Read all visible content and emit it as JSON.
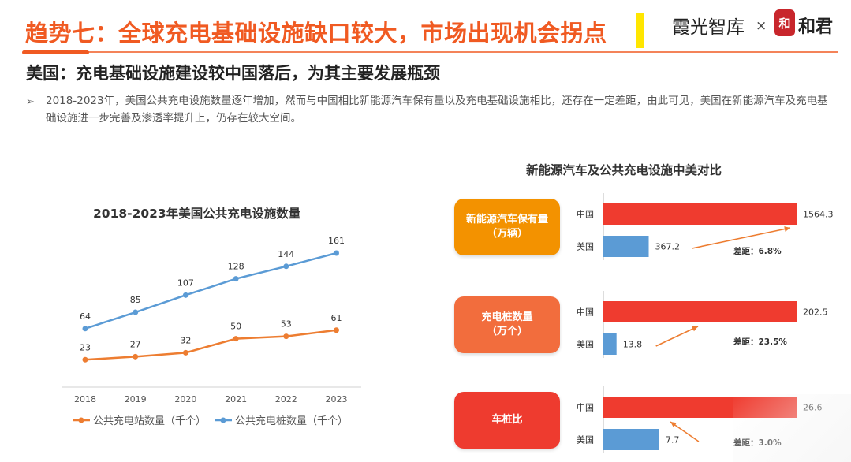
{
  "header": {
    "title": "趋势七：全球充电基础设施缺口较大，市场出现机会拐点",
    "brand": "霞光智库",
    "brand_separator": "×",
    "brand_seal": "和",
    "partner": "和君",
    "subtitle": "美国：充电基础设施建设较中国落后，为其主要发展瓶颈",
    "bullet_icon": "arrow-right-icon",
    "bullet": "2018-2023年，美国公共充电设施数量逐年增加，然而与中国相比新能源汽车保有量以及充电基础设施相比，还存在一定差距，由此可见，美国在新能源汽车及充电基础设施进一步完善及渗透率提升上，仍存在较大空间。"
  },
  "colors": {
    "accent": "#f05a22",
    "station": "#ed7d31",
    "pile": "#5b9bd5",
    "china_bar": "#ef3b2f",
    "us_bar": "#5b9bd5",
    "box_vehicles": "#f39200",
    "box_piles": "#f26d3d",
    "box_ratio": "#ee3b2f"
  },
  "chart_data": [
    {
      "type": "line",
      "title": "2018-2023年美国公共充电设施数量",
      "x": [
        "2018",
        "2019",
        "2020",
        "2021",
        "2022",
        "2023"
      ],
      "series": [
        {
          "name": "公共充电站数量（千个）",
          "values": [
            23,
            27,
            32,
            50,
            53,
            61
          ]
        },
        {
          "name": "公共充电桩数量（千个）",
          "values": [
            64,
            85,
            107,
            128,
            144,
            161
          ]
        }
      ],
      "ylim": [
        0,
        180
      ],
      "grid": false,
      "legend": "bottom"
    },
    {
      "type": "bar",
      "orientation": "horizontal",
      "title": "新能源汽车及公共充电设施中美对比",
      "groups": [
        {
          "label": "新能源汽车保有量（万辆）",
          "label_lines": [
            "新能源汽车保有量",
            "（万辆）"
          ],
          "categories": [
            "中国",
            "美国"
          ],
          "values": [
            1564.3,
            367.2
          ],
          "gap_label": "差距：6.8%"
        },
        {
          "label": "充电桩数量（万个）",
          "label_lines": [
            "充电桩数量",
            "（万个）"
          ],
          "categories": [
            "中国",
            "美国"
          ],
          "values": [
            202.5,
            13.8
          ],
          "gap_label": "差距：23.5%"
        },
        {
          "label": "车桩比",
          "label_lines": [
            "车桩比"
          ],
          "categories": [
            "中国",
            "美国"
          ],
          "values": [
            26.6,
            7.7
          ],
          "gap_label": "差距：3.0%"
        }
      ]
    }
  ]
}
